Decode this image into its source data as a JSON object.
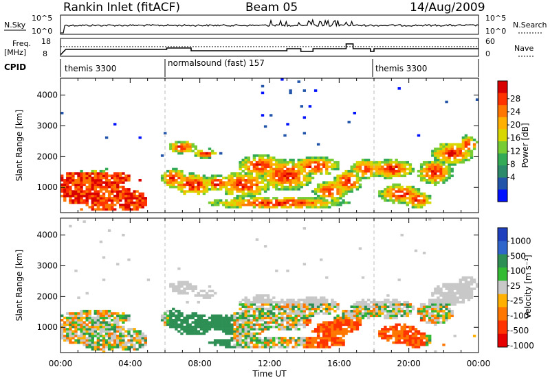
{
  "header": {
    "station": "Rankin Inlet (fitACF)",
    "beam": "Beam 05",
    "date": "14/Aug/2009"
  },
  "top_panels": {
    "nsky_label": "N.Sky",
    "nsky_ticks": [
      "10^5",
      "10^0"
    ],
    "nsearch_label": "N.Search",
    "nsearch_ticks": [
      "10^5",
      "10^0"
    ],
    "freq_label_1": "Freq.",
    "freq_label_2": "[MHz]",
    "freq_ticks": [
      "18",
      "8"
    ],
    "nave_label": "Nave",
    "nave_ticks": [
      "60",
      "0"
    ],
    "cpid_label": "CPID",
    "cpid_segments": [
      {
        "label": "themis 3300",
        "start_h": 0,
        "end_h": 6
      },
      {
        "label": "normalsound (fast) 157",
        "start_h": 6,
        "end_h": 18
      },
      {
        "label": "themis 3300",
        "start_h": 18,
        "end_h": 24
      }
    ]
  },
  "chart_data": [
    {
      "type": "heatmap",
      "ylabel": "Slant Range [km]",
      "y_ticks": [
        1000,
        2000,
        3000,
        4000
      ],
      "ylim": [
        180,
        4550
      ],
      "xlim": [
        0,
        24
      ],
      "colorbar_label": "Power [dB]",
      "colorbar_ticks": [
        "28",
        "24",
        "20",
        "16",
        "12",
        "8",
        "4"
      ],
      "colorbar_colors": [
        "#d90000",
        "#ff3300",
        "#ff7700",
        "#ffb000",
        "#d8d800",
        "#77cc33",
        "#33aa55",
        "#2a8a6a",
        "#2255aa",
        "#0011ff"
      ]
    },
    {
      "type": "heatmap",
      "ylabel": "Slant Range [km]",
      "y_ticks": [
        1000,
        2000,
        3000,
        4000
      ],
      "ylim": [
        180,
        4550
      ],
      "xlim": [
        0,
        24
      ],
      "colorbar_label": "Velocity [m s⁻¹]",
      "colorbar_ticks": [
        "1000",
        "500",
        "100",
        "25",
        "-25",
        "-100",
        "-500",
        "-1000"
      ],
      "colorbar_colors": [
        "#1f3fbf",
        "#2f66cc",
        "#2e8f55",
        "#33bb33",
        "#c8c8c8",
        "#ffb000",
        "#ff7700",
        "#ff3300",
        "#e60000"
      ]
    }
  ],
  "x_axis": {
    "label": "Time UT",
    "ticks": [
      "00:00",
      "04:00",
      "08:00",
      "12:00",
      "16:00",
      "20:00",
      "00:00"
    ]
  }
}
